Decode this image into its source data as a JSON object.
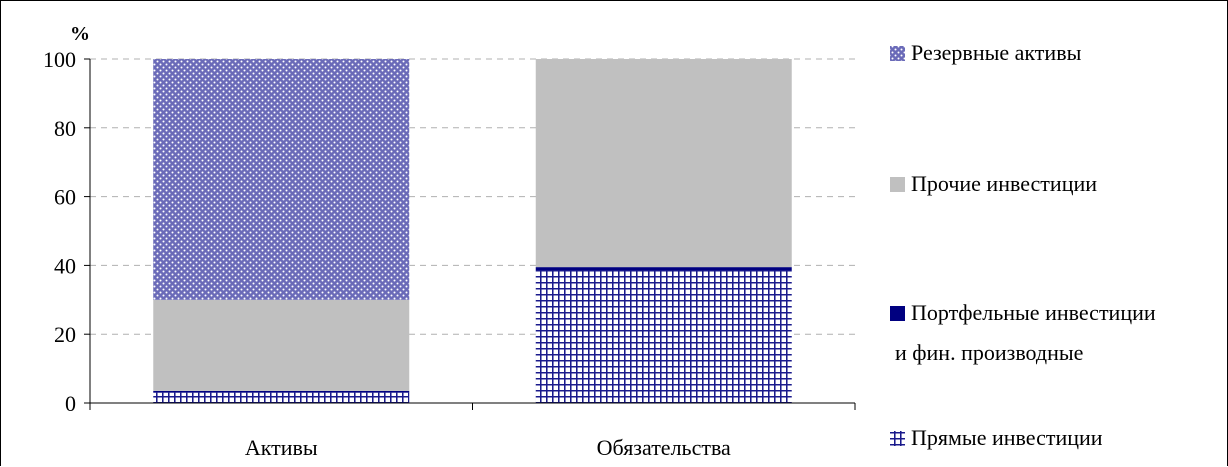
{
  "chart_data": {
    "type": "bar",
    "stacked": true,
    "percent": true,
    "unit_label": "%",
    "categories": [
      "Активы",
      "Обязательства"
    ],
    "series": [
      {
        "name": "Прямые инвестиции",
        "values": [
          3,
          38.5
        ],
        "pattern": "grid",
        "color": "#1a1a8c"
      },
      {
        "name": "Портфельные инвестиции и фин. производные",
        "values": [
          0.5,
          1
        ],
        "pattern": "solid",
        "color": "#000080"
      },
      {
        "name": "Прочие инвестиции",
        "values": [
          26.5,
          60.5
        ],
        "pattern": "solid",
        "color": "#c0c0c0"
      },
      {
        "name": "Резервные активы",
        "values": [
          70,
          0
        ],
        "pattern": "dots",
        "color": "#6a6ab8"
      }
    ],
    "ylim": [
      0,
      100
    ],
    "yticks": [
      0,
      20,
      40,
      60,
      80,
      100
    ],
    "grid": true,
    "legend_position": "right"
  },
  "legend_items": [
    {
      "lines": [
        "Резервные активы"
      ],
      "series_index": 3
    },
    {
      "lines": [
        "Прочие инвестиции"
      ],
      "series_index": 2
    },
    {
      "lines": [
        "Портфельные инвестиции",
        "и фин. производные"
      ],
      "series_index": 1
    },
    {
      "lines": [
        "Прямые инвестиции"
      ],
      "series_index": 0
    }
  ]
}
